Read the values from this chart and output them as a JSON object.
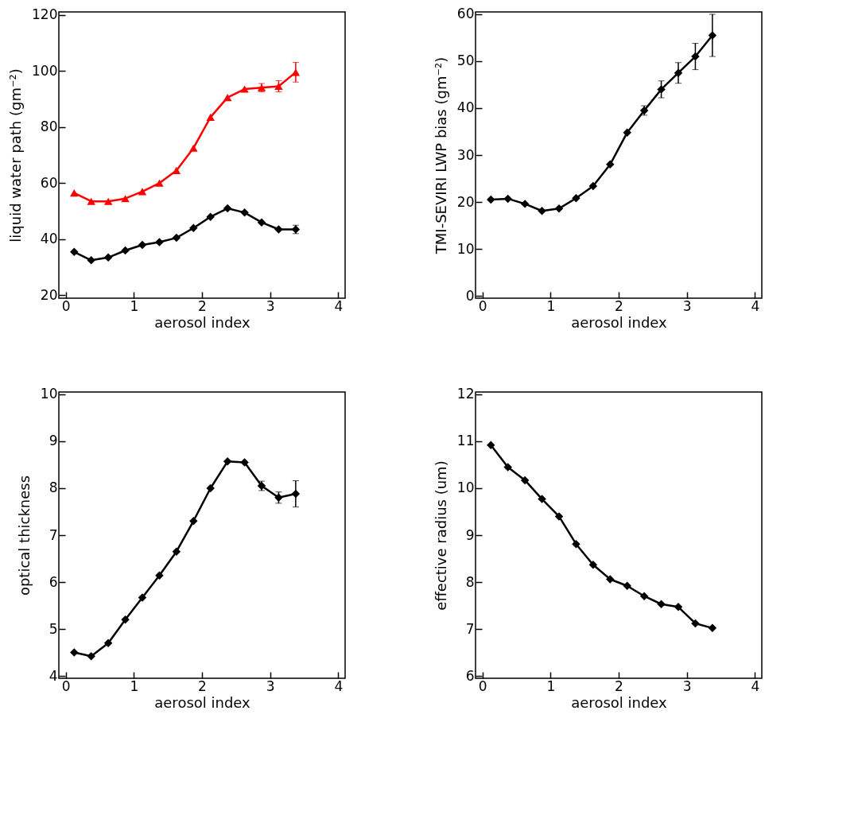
{
  "chart_data": [
    {
      "type": "line",
      "xlabel": "aerosol index",
      "ylabel": "liquid water path (gm⁻²)",
      "x": [
        0.125,
        0.375,
        0.625,
        0.875,
        1.125,
        1.375,
        1.625,
        1.875,
        2.125,
        2.375,
        2.625,
        2.875,
        3.125,
        3.375
      ],
      "xlim": [
        -0.1,
        4.1
      ],
      "xticks": [
        0,
        1,
        2,
        3,
        4
      ],
      "ylim": [
        19,
        121
      ],
      "yticks": [
        20,
        40,
        60,
        80,
        100,
        120
      ],
      "grid": false,
      "line_style": "solid",
      "series": [
        {
          "color": "#ff0000",
          "marker": "triangle",
          "values": [
            56.5,
            53.5,
            53.5,
            54.5,
            57,
            60,
            64.5,
            72.5,
            83.5,
            90.5,
            93.5,
            94,
            94.5,
            99.5
          ],
          "errors": [
            null,
            null,
            null,
            null,
            null,
            null,
            null,
            null,
            null,
            null,
            null,
            1.5,
            2,
            3.5
          ]
        },
        {
          "color": "#000000",
          "marker": "diamond",
          "values": [
            35.5,
            32.5,
            33.5,
            36,
            38,
            39,
            40.5,
            44,
            48,
            51,
            49.5,
            46,
            43.5,
            43.5
          ],
          "errors": [
            null,
            null,
            null,
            null,
            null,
            null,
            null,
            null,
            null,
            null,
            null,
            null,
            null,
            1.5
          ]
        }
      ]
    },
    {
      "type": "line",
      "xlabel": "aerosol index",
      "ylabel": "TMI-SEVIRI LWP bias (gm⁻²)",
      "x": [
        0.125,
        0.375,
        0.625,
        0.875,
        1.125,
        1.375,
        1.625,
        1.875,
        2.125,
        2.375,
        2.625,
        2.875,
        3.125,
        3.375
      ],
      "xlim": [
        -0.1,
        4.1
      ],
      "xticks": [
        0,
        1,
        2,
        3,
        4
      ],
      "ylim": [
        -0.5,
        60.5
      ],
      "yticks": [
        0,
        10,
        20,
        30,
        40,
        50,
        60
      ],
      "grid": false,
      "line_style": "solid",
      "series": [
        {
          "color": "#000000",
          "marker": "diamond",
          "values": [
            20.5,
            20.7,
            19.6,
            18.1,
            18.6,
            20.8,
            23.4,
            28,
            34.8,
            39.5,
            44,
            47.5,
            51,
            55.5
          ],
          "errors": [
            null,
            null,
            null,
            null,
            null,
            null,
            null,
            null,
            null,
            1,
            1.8,
            2.2,
            2.8,
            4.5
          ]
        }
      ]
    },
    {
      "type": "line",
      "xlabel": "aerosol index",
      "ylabel": "optical thickness",
      "x": [
        0.125,
        0.375,
        0.625,
        0.875,
        1.125,
        1.375,
        1.625,
        1.875,
        2.125,
        2.375,
        2.625,
        2.875,
        3.125,
        3.375
      ],
      "xlim": [
        -0.1,
        4.1
      ],
      "xticks": [
        0,
        1,
        2,
        3,
        4
      ],
      "ylim": [
        3.95,
        10.05
      ],
      "yticks": [
        4,
        5,
        6,
        7,
        8,
        9,
        10
      ],
      "grid": false,
      "line_style": "solid",
      "series": [
        {
          "color": "#000000",
          "marker": "diamond",
          "values": [
            4.5,
            4.42,
            4.7,
            5.2,
            5.67,
            6.14,
            6.65,
            7.3,
            8.0,
            8.57,
            8.55,
            8.05,
            7.8,
            7.88
          ],
          "errors": [
            null,
            null,
            null,
            null,
            null,
            null,
            null,
            null,
            null,
            null,
            null,
            0.1,
            0.12,
            0.28
          ]
        }
      ]
    },
    {
      "type": "line",
      "xlabel": "aerosol index",
      "ylabel": "effective radius (um)",
      "x": [
        0.125,
        0.375,
        0.625,
        0.875,
        1.125,
        1.375,
        1.625,
        1.875,
        2.125,
        2.375,
        2.625,
        2.875,
        3.125,
        3.375
      ],
      "xlim": [
        -0.1,
        4.1
      ],
      "xticks": [
        0,
        1,
        2,
        3,
        4
      ],
      "ylim": [
        5.95,
        12.05
      ],
      "yticks": [
        6,
        7,
        8,
        9,
        10,
        11,
        12
      ],
      "grid": false,
      "line_style": "solid",
      "series": [
        {
          "color": "#000000",
          "marker": "diamond",
          "values": [
            10.92,
            10.45,
            10.17,
            9.77,
            9.4,
            8.81,
            8.37,
            8.06,
            7.92,
            7.7,
            7.53,
            7.47,
            7.12,
            7.02
          ]
        }
      ]
    }
  ]
}
